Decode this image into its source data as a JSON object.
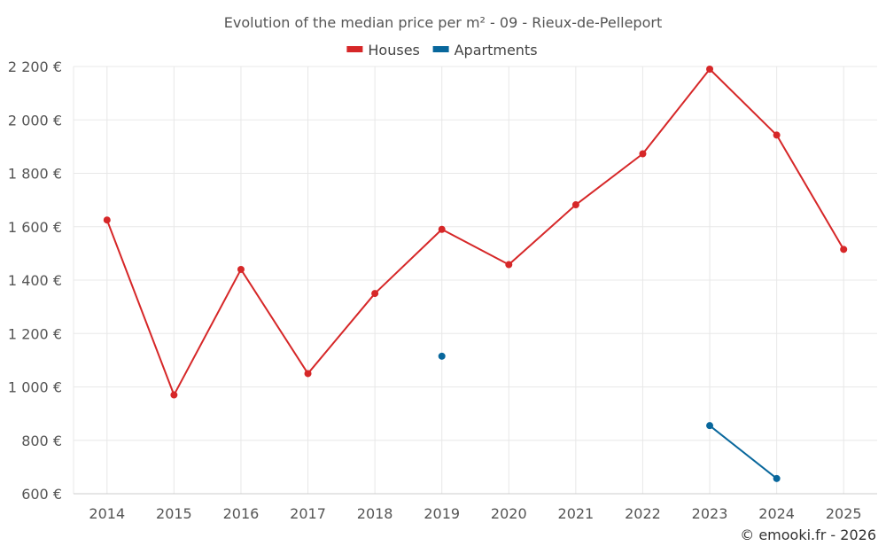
{
  "chart_data": {
    "type": "line",
    "title": "Evolution of the median price per m² - 09 - Rieux-de-Pelleport",
    "categories": [
      "2014",
      "2015",
      "2016",
      "2017",
      "2018",
      "2019",
      "2020",
      "2021",
      "2022",
      "2023",
      "2024",
      "2025"
    ],
    "ylim": [
      600,
      2200
    ],
    "yticks": [
      600,
      800,
      1000,
      1200,
      1400,
      1600,
      1800,
      2000,
      2200
    ],
    "ytick_labels": [
      "600 €",
      "800 €",
      "1 000 €",
      "1 200 €",
      "1 400 €",
      "1 600 €",
      "1 800 €",
      "2 000 €",
      "2 200 €"
    ],
    "grid": true,
    "legend_position": "top-center",
    "series": [
      {
        "name": "Houses",
        "color": "#d62728",
        "values": [
          1625,
          970,
          1440,
          1050,
          1350,
          1590,
          1458,
          1682,
          1873,
          2190,
          1943,
          1515
        ]
      },
      {
        "name": "Apartments",
        "color": "#08679c",
        "values": [
          null,
          null,
          null,
          null,
          null,
          1115,
          null,
          null,
          null,
          855,
          657,
          null
        ]
      }
    ],
    "credit": "© emooki.fr - 2026"
  }
}
